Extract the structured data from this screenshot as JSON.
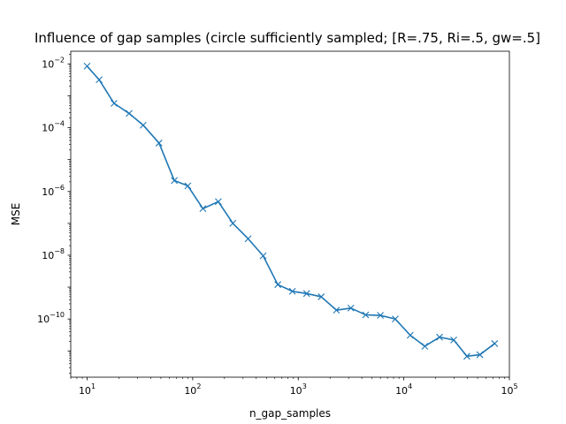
{
  "chart_data": {
    "type": "line",
    "title": "Influence of gap samples (circle sufficiently sampled; [R=.75, Ri=.5, gw=.5]",
    "xlabel": "n_gap_samples",
    "ylabel": "MSE",
    "xscale": "log",
    "yscale": "log",
    "xlim": [
      7.0,
      100000.0
    ],
    "ylim": [
      1.5e-12,
      0.025
    ],
    "grid": false,
    "marker": "x",
    "color": "#1f77b4",
    "x_ticks": [
      {
        "value": 10,
        "base": "10",
        "exp": "1"
      },
      {
        "value": 100,
        "base": "10",
        "exp": "2"
      },
      {
        "value": 1000,
        "base": "10",
        "exp": "3"
      },
      {
        "value": 10000,
        "base": "10",
        "exp": "4"
      },
      {
        "value": 100000,
        "base": "10",
        "exp": "5"
      }
    ],
    "y_ticks": [
      {
        "value": 1e-10,
        "base": "10",
        "exp": "−10"
      },
      {
        "value": 1e-08,
        "base": "10",
        "exp": "−8"
      },
      {
        "value": 1e-06,
        "base": "10",
        "exp": "−6"
      },
      {
        "value": 0.0001,
        "base": "10",
        "exp": "−4"
      },
      {
        "value": 0.01,
        "base": "10",
        "exp": "−2"
      }
    ],
    "series": [
      {
        "x": [
          10,
          13,
          18,
          25,
          34,
          48,
          67,
          90,
          125,
          175,
          240,
          335,
          465,
          640,
          880,
          1200,
          1650,
          2300,
          3150,
          4350,
          6000,
          8300,
          11500,
          15800,
          21800,
          29700,
          39600,
          52500,
          72500
        ],
        "y": [
          0.0085,
          0.0032,
          0.00058,
          0.00028,
          0.00012,
          3.3e-05,
          2.2e-06,
          1.5e-06,
          2.9e-07,
          4.8e-07,
          1e-07,
          3.3e-08,
          9.6e-09,
          1.2e-09,
          7.4e-10,
          6.3e-10,
          5e-10,
          1.9e-10,
          2.2e-10,
          1.35e-10,
          1.3e-10,
          1e-10,
          3.1e-11,
          1.4e-11,
          2.7e-11,
          2.2e-11,
          6.8e-12,
          7.6e-12,
          1.7e-11
        ]
      }
    ]
  }
}
